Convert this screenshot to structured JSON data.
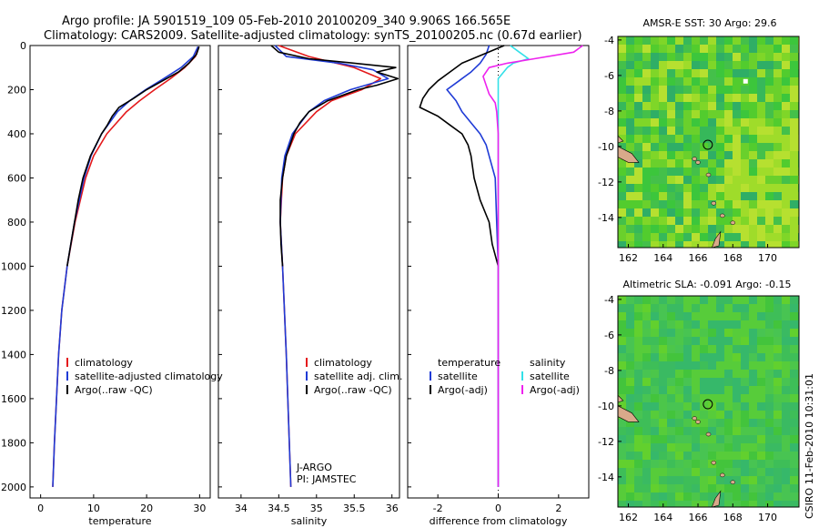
{
  "header": {
    "line1": "Argo profile: JA 5901519_109 05-Feb-2010 20100209_340 9.906S 166.565E",
    "line2": "Climatology: CARS2009. Satellite-adjusted climatology: synTS_20100205.nc (0.67d earlier)"
  },
  "colors": {
    "climatology": "#e41a1c",
    "satellite": "#1f3bd6",
    "argo": "#000000",
    "sat_salinity": "#33e0e8",
    "argo_adj_salinity": "#ee22ee"
  },
  "chart_data": [
    {
      "id": "temperature",
      "type": "line",
      "xlabel": "temperature",
      "xlim": [
        -2,
        32
      ],
      "ylim": [
        2050,
        0
      ],
      "xticks": [
        0,
        10,
        20,
        30
      ],
      "yticks": [
        0,
        200,
        400,
        600,
        800,
        1000,
        1200,
        1400,
        1600,
        1800,
        2000
      ],
      "legend": {
        "position": "lower-right",
        "entries": [
          "climatology",
          "satellite-adjusted climatology",
          "Argo(..raw -QC)"
        ]
      },
      "series": [
        {
          "name": "climatology",
          "color": "#e41a1c",
          "depth": [
            5,
            50,
            100,
            150,
            200,
            250,
            300,
            400,
            500,
            600,
            800,
            1000,
            1200,
            1400,
            1600,
            1800,
            2000
          ],
          "values": [
            29.8,
            29.2,
            27.2,
            24.5,
            21.5,
            18.7,
            16.2,
            12.5,
            10.0,
            8.5,
            6.5,
            5.0,
            4.0,
            3.4,
            3.0,
            2.6,
            2.3
          ]
        },
        {
          "name": "satellite-adjusted climatology",
          "color": "#1f3bd6",
          "depth": [
            5,
            50,
            100,
            150,
            200,
            250,
            300,
            400,
            500,
            600,
            800,
            1000,
            1200,
            1400,
            1600,
            1800,
            2000
          ],
          "values": [
            29.7,
            28.8,
            26.5,
            23.2,
            19.8,
            16.8,
            14.5,
            11.5,
            9.5,
            8.2,
            6.4,
            5.0,
            4.0,
            3.4,
            3.0,
            2.6,
            2.3
          ]
        },
        {
          "name": "Argo(..raw -QC)",
          "color": "#000000",
          "depth": [
            5,
            40,
            80,
            120,
            160,
            200,
            240,
            280,
            320,
            360,
            400,
            500,
            600,
            700,
            800,
            900,
            1000
          ],
          "values": [
            29.9,
            29.4,
            28.0,
            26.0,
            23.0,
            20.0,
            17.5,
            14.8,
            13.5,
            12.6,
            11.5,
            9.4,
            8.0,
            7.1,
            6.4,
            5.7,
            5.0
          ]
        }
      ]
    },
    {
      "id": "salinity",
      "type": "line",
      "xlabel": "salinity",
      "xlim": [
        33.7,
        36.1
      ],
      "ylim": [
        2050,
        0
      ],
      "xticks": [
        34,
        34.5,
        35,
        35.5,
        36
      ],
      "tick_labels": [
        "34",
        "34.5",
        "35",
        "35.5",
        "36"
      ],
      "legend": {
        "position": "lower-right",
        "entries": [
          "climatology",
          "satellite adj. clim.",
          "Argo(..raw -QC)"
        ]
      },
      "annotations": [
        "J-ARGO",
        "PI: JAMSTEC"
      ],
      "series": [
        {
          "name": "climatology",
          "color": "#e41a1c",
          "depth": [
            0,
            50,
            100,
            150,
            200,
            250,
            300,
            400,
            500,
            600,
            800,
            1000,
            1400,
            2000
          ],
          "values": [
            34.5,
            34.9,
            35.5,
            35.85,
            35.6,
            35.2,
            35.0,
            34.72,
            34.6,
            34.55,
            34.52,
            34.55,
            34.6,
            34.66
          ]
        },
        {
          "name": "satellite adj. clim.",
          "color": "#1f3bd6",
          "depth": [
            0,
            50,
            80,
            110,
            150,
            200,
            250,
            300,
            400,
            500,
            600,
            800,
            1000,
            1400,
            2000
          ],
          "values": [
            34.45,
            34.6,
            35.3,
            35.75,
            35.95,
            35.45,
            35.1,
            34.9,
            34.68,
            34.58,
            34.54,
            34.52,
            34.55,
            34.6,
            34.66
          ]
        },
        {
          "name": "Argo(..raw -QC)",
          "color": "#000000",
          "depth": [
            0,
            30,
            60,
            80,
            100,
            120,
            150,
            180,
            200,
            250,
            300,
            350,
            400,
            500,
            600,
            700,
            800,
            900,
            1000
          ],
          "values": [
            34.4,
            34.5,
            34.9,
            35.5,
            36.05,
            35.8,
            36.08,
            35.8,
            35.55,
            35.15,
            34.9,
            34.78,
            34.7,
            34.6,
            34.55,
            34.52,
            34.52,
            34.53,
            34.55
          ]
        }
      ]
    },
    {
      "id": "difference",
      "type": "line",
      "xlabel": "difference from climatology",
      "xlim": [
        -3,
        3
      ],
      "ylim": [
        2050,
        0
      ],
      "xticks": [
        -2,
        0,
        2
      ],
      "legend": {
        "position": "lower-left",
        "columns": [
          "temperature",
          "salinity"
        ],
        "entries": [
          "satellite",
          "Argo(-adj)",
          "satellite",
          "Argo(-adj)"
        ]
      },
      "series": [
        {
          "name": "temperature satellite",
          "color": "#1f3bd6",
          "depth": [
            0,
            40,
            80,
            120,
            160,
            200,
            250,
            300,
            350,
            400,
            450,
            500,
            600,
            800,
            1000,
            2000
          ],
          "values": [
            -0.3,
            -0.4,
            -0.6,
            -0.9,
            -1.3,
            -1.7,
            -1.4,
            -1.2,
            -0.9,
            -0.6,
            -0.4,
            -0.3,
            -0.1,
            -0.05,
            0,
            0
          ]
        },
        {
          "name": "temperature Argo(-adj)",
          "color": "#000000",
          "depth": [
            0,
            40,
            80,
            120,
            160,
            200,
            240,
            280,
            320,
            360,
            400,
            450,
            500,
            600,
            700,
            800,
            900,
            1000
          ],
          "values": [
            0.2,
            -0.5,
            -1.2,
            -1.6,
            -2.0,
            -2.3,
            -2.5,
            -2.6,
            -2.0,
            -1.6,
            -1.2,
            -1.0,
            -0.9,
            -0.8,
            -0.6,
            -0.3,
            -0.2,
            0
          ]
        },
        {
          "name": "salinity satellite",
          "color": "#33e0e8",
          "depth": [
            0,
            30,
            60,
            80,
            100,
            150,
            200,
            300,
            400,
            600,
            1000,
            2000
          ],
          "values": [
            0.4,
            0.7,
            1.0,
            0.5,
            0.3,
            0,
            0,
            0,
            0,
            0,
            0,
            0
          ]
        },
        {
          "name": "salinity Argo(-adj)",
          "color": "#ee22ee",
          "depth": [
            0,
            30,
            60,
            80,
            100,
            140,
            180,
            220,
            260,
            300,
            400,
            500,
            600,
            800,
            1000,
            2000
          ],
          "values": [
            2.8,
            2.5,
            1.2,
            0.3,
            -0.3,
            -0.5,
            -0.4,
            -0.3,
            -0.1,
            -0.05,
            0,
            0,
            0,
            0,
            0,
            0
          ]
        }
      ]
    }
  ],
  "maps": [
    {
      "id": "sst",
      "title": "AMSR-E SST: 30 Argo: 29.6",
      "yticks": [
        "-4",
        "-6",
        "-8",
        "-10",
        "-12",
        "-14"
      ],
      "xticks": [
        "162",
        "164",
        "166",
        "168",
        "170"
      ]
    },
    {
      "id": "sla",
      "title": "Altimetric SLA: -0.091 Argo: -0.15",
      "yticks": [
        "-4",
        "-6",
        "-8",
        "-10",
        "-12",
        "-14"
      ],
      "xticks": [
        "162",
        "164",
        "166",
        "168",
        "170"
      ]
    }
  ],
  "credit": "CSIRO 11-Feb-2010 10:31:01"
}
